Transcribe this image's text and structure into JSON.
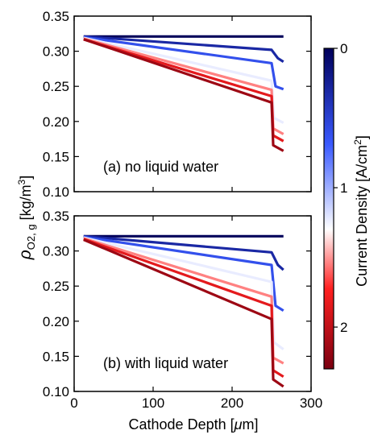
{
  "chart_data": [
    {
      "id": "a",
      "type": "line",
      "annotation": "(a) no liquid water",
      "xlim": [
        0,
        300
      ],
      "ylim": [
        0.1,
        0.35
      ],
      "x_ticks": [
        0,
        100,
        200,
        300
      ],
      "y_ticks": [
        "0.10",
        "0.15",
        "0.20",
        "0.25",
        "0.30",
        "0.35"
      ],
      "grid": false,
      "series": [
        {
          "current_density": 0.0,
          "x": [
            12,
            250,
            265
          ],
          "y": [
            0.321,
            0.321,
            0.321
          ]
        },
        {
          "current_density": 0.31,
          "x": [
            12,
            250,
            258,
            265
          ],
          "y": [
            0.321,
            0.302,
            0.29,
            0.285
          ]
        },
        {
          "current_density": 0.61,
          "x": [
            12,
            250,
            255,
            265
          ],
          "y": [
            0.32,
            0.283,
            0.25,
            0.246
          ]
        },
        {
          "current_density": 1.23,
          "x": [
            12,
            250,
            253,
            265
          ],
          "y": [
            0.319,
            0.258,
            0.205,
            0.198
          ]
        },
        {
          "current_density": 1.54,
          "x": [
            12,
            250,
            252,
            265
          ],
          "y": [
            0.318,
            0.245,
            0.19,
            0.182
          ]
        },
        {
          "current_density": 1.84,
          "x": [
            12,
            250,
            252,
            265
          ],
          "y": [
            0.317,
            0.236,
            0.18,
            0.172
          ]
        },
        {
          "current_density": 2.15,
          "x": [
            12,
            250,
            252,
            265
          ],
          "y": [
            0.317,
            0.227,
            0.166,
            0.158
          ]
        }
      ]
    },
    {
      "id": "b",
      "type": "line",
      "annotation": "(b) with liquid water",
      "xlim": [
        0,
        300
      ],
      "ylim": [
        0.1,
        0.35
      ],
      "x_ticks": [
        0,
        100,
        200,
        300
      ],
      "y_ticks": [
        "0.10",
        "0.15",
        "0.20",
        "0.25",
        "0.30",
        "0.35"
      ],
      "grid": false,
      "series": [
        {
          "current_density": 0.0,
          "x": [
            12,
            250,
            265
          ],
          "y": [
            0.321,
            0.321,
            0.321
          ]
        },
        {
          "current_density": 0.31,
          "x": [
            12,
            250,
            258,
            265
          ],
          "y": [
            0.321,
            0.298,
            0.28,
            0.273
          ]
        },
        {
          "current_density": 0.61,
          "x": [
            12,
            250,
            255,
            265
          ],
          "y": [
            0.32,
            0.28,
            0.222,
            0.215
          ]
        },
        {
          "current_density": 1.23,
          "x": [
            12,
            250,
            253,
            265
          ],
          "y": [
            0.319,
            0.256,
            0.17,
            0.16
          ]
        },
        {
          "current_density": 1.54,
          "x": [
            12,
            250,
            252,
            265
          ],
          "y": [
            0.318,
            0.235,
            0.148,
            0.14
          ]
        },
        {
          "current_density": 1.84,
          "x": [
            12,
            250,
            252,
            265
          ],
          "y": [
            0.317,
            0.222,
            0.13,
            0.121
          ]
        },
        {
          "current_density": 2.15,
          "x": [
            12,
            250,
            252,
            265
          ],
          "y": [
            0.316,
            0.203,
            0.117,
            0.107
          ]
        }
      ]
    }
  ],
  "axes": {
    "xlabel_prefix": "Cathode Depth [",
    "xlabel_mu": "μ",
    "xlabel_suffix": "m]",
    "ylabel_rho": "ρ",
    "ylabel_sub": "O2, g",
    "ylabel_units": " [kg/m",
    "ylabel_sup": "3",
    "ylabel_close": "]"
  },
  "colorbar": {
    "title": "Current Density [A/cm",
    "title_sup": "2",
    "title_close": "]",
    "range": [
      0,
      2.3
    ],
    "ticks": [
      "0",
      "1",
      "2"
    ],
    "colormap": [
      "#7a0010",
      "#ff2020",
      "#ffffff",
      "#3a5aff",
      "#00005a"
    ]
  }
}
